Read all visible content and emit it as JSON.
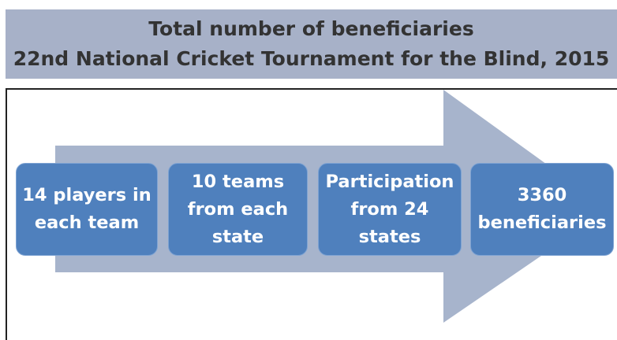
{
  "header": {
    "title": "Total number of beneficiaries",
    "subtitle": "22nd National Cricket Tournament for the Blind, 2015"
  },
  "steps": [
    {
      "lines": [
        "14 players in",
        "each team"
      ]
    },
    {
      "lines": [
        "10 teams",
        "from each",
        "state"
      ]
    },
    {
      "lines": [
        "Participation",
        "from 24",
        "states"
      ]
    },
    {
      "lines": [
        "3360",
        "beneficiaries"
      ]
    }
  ]
}
